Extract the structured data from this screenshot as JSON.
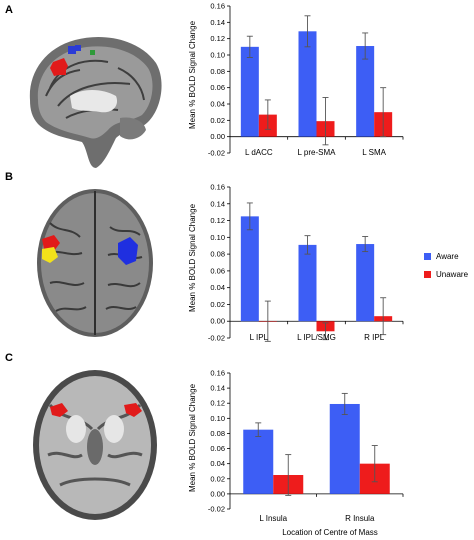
{
  "panels": [
    {
      "letter": "A"
    },
    {
      "letter": "B"
    },
    {
      "letter": "C"
    }
  ],
  "legend": {
    "items": [
      {
        "label": "Aware",
        "color": "#3d5ef5"
      },
      {
        "label": "Unaware",
        "color": "#ee1c1c"
      }
    ]
  },
  "colors": {
    "aware": "#3d5ef5",
    "unaware": "#ee1c1c"
  },
  "chart_data": [
    {
      "type": "bar",
      "title": "",
      "ylabel": "Mean % BOLD Signal Change",
      "xlabel": "",
      "ylim": [
        -0.02,
        0.16
      ],
      "yticks": [
        "-0.02",
        "0.00",
        "0.02",
        "0.04",
        "0.06",
        "0.08",
        "0.10",
        "0.12",
        "0.14",
        "0.16"
      ],
      "categories": [
        "L dACC",
        "L pre-SMA",
        "L SMA"
      ],
      "series": [
        {
          "name": "Aware",
          "values": [
            0.11,
            0.129,
            0.111
          ],
          "errors": [
            0.013,
            0.019,
            0.016
          ]
        },
        {
          "name": "Unaware",
          "values": [
            0.027,
            0.019,
            0.03
          ],
          "errors": [
            0.018,
            0.029,
            0.03
          ]
        }
      ],
      "grid": false
    },
    {
      "type": "bar",
      "title": "",
      "ylabel": "Mean % BOLD Signal Change",
      "xlabel": "",
      "ylim": [
        -0.02,
        0.16
      ],
      "yticks": [
        "-0.02",
        "0.00",
        "0.02",
        "0.04",
        "0.06",
        "0.08",
        "0.10",
        "0.12",
        "0.14",
        "0.16"
      ],
      "categories": [
        "L IPL",
        "L IPL/SMG",
        "R IPL"
      ],
      "series": [
        {
          "name": "Aware",
          "values": [
            0.125,
            0.091,
            0.092
          ],
          "errors": [
            0.016,
            0.011,
            0.009
          ]
        },
        {
          "name": "Unaware",
          "values": [
            0.0,
            -0.012,
            0.006
          ],
          "errors": [
            0.024,
            0.01,
            0.022
          ]
        }
      ],
      "grid": false
    },
    {
      "type": "bar",
      "title": "",
      "ylabel": "Mean % BOLD Signal Change",
      "xlabel": "Location of Centre of Mass",
      "ylim": [
        -0.02,
        0.16
      ],
      "yticks": [
        "-0.02",
        "0.00",
        "0.02",
        "0.04",
        "0.06",
        "0.08",
        "0.10",
        "0.12",
        "0.14",
        "0.16"
      ],
      "categories": [
        "L Insula",
        "R Insula"
      ],
      "series": [
        {
          "name": "Aware",
          "values": [
            0.085,
            0.119
          ],
          "errors": [
            0.009,
            0.014
          ]
        },
        {
          "name": "Unaware",
          "values": [
            0.025,
            0.04
          ],
          "errors": [
            0.027,
            0.024
          ]
        }
      ],
      "grid": false
    }
  ]
}
